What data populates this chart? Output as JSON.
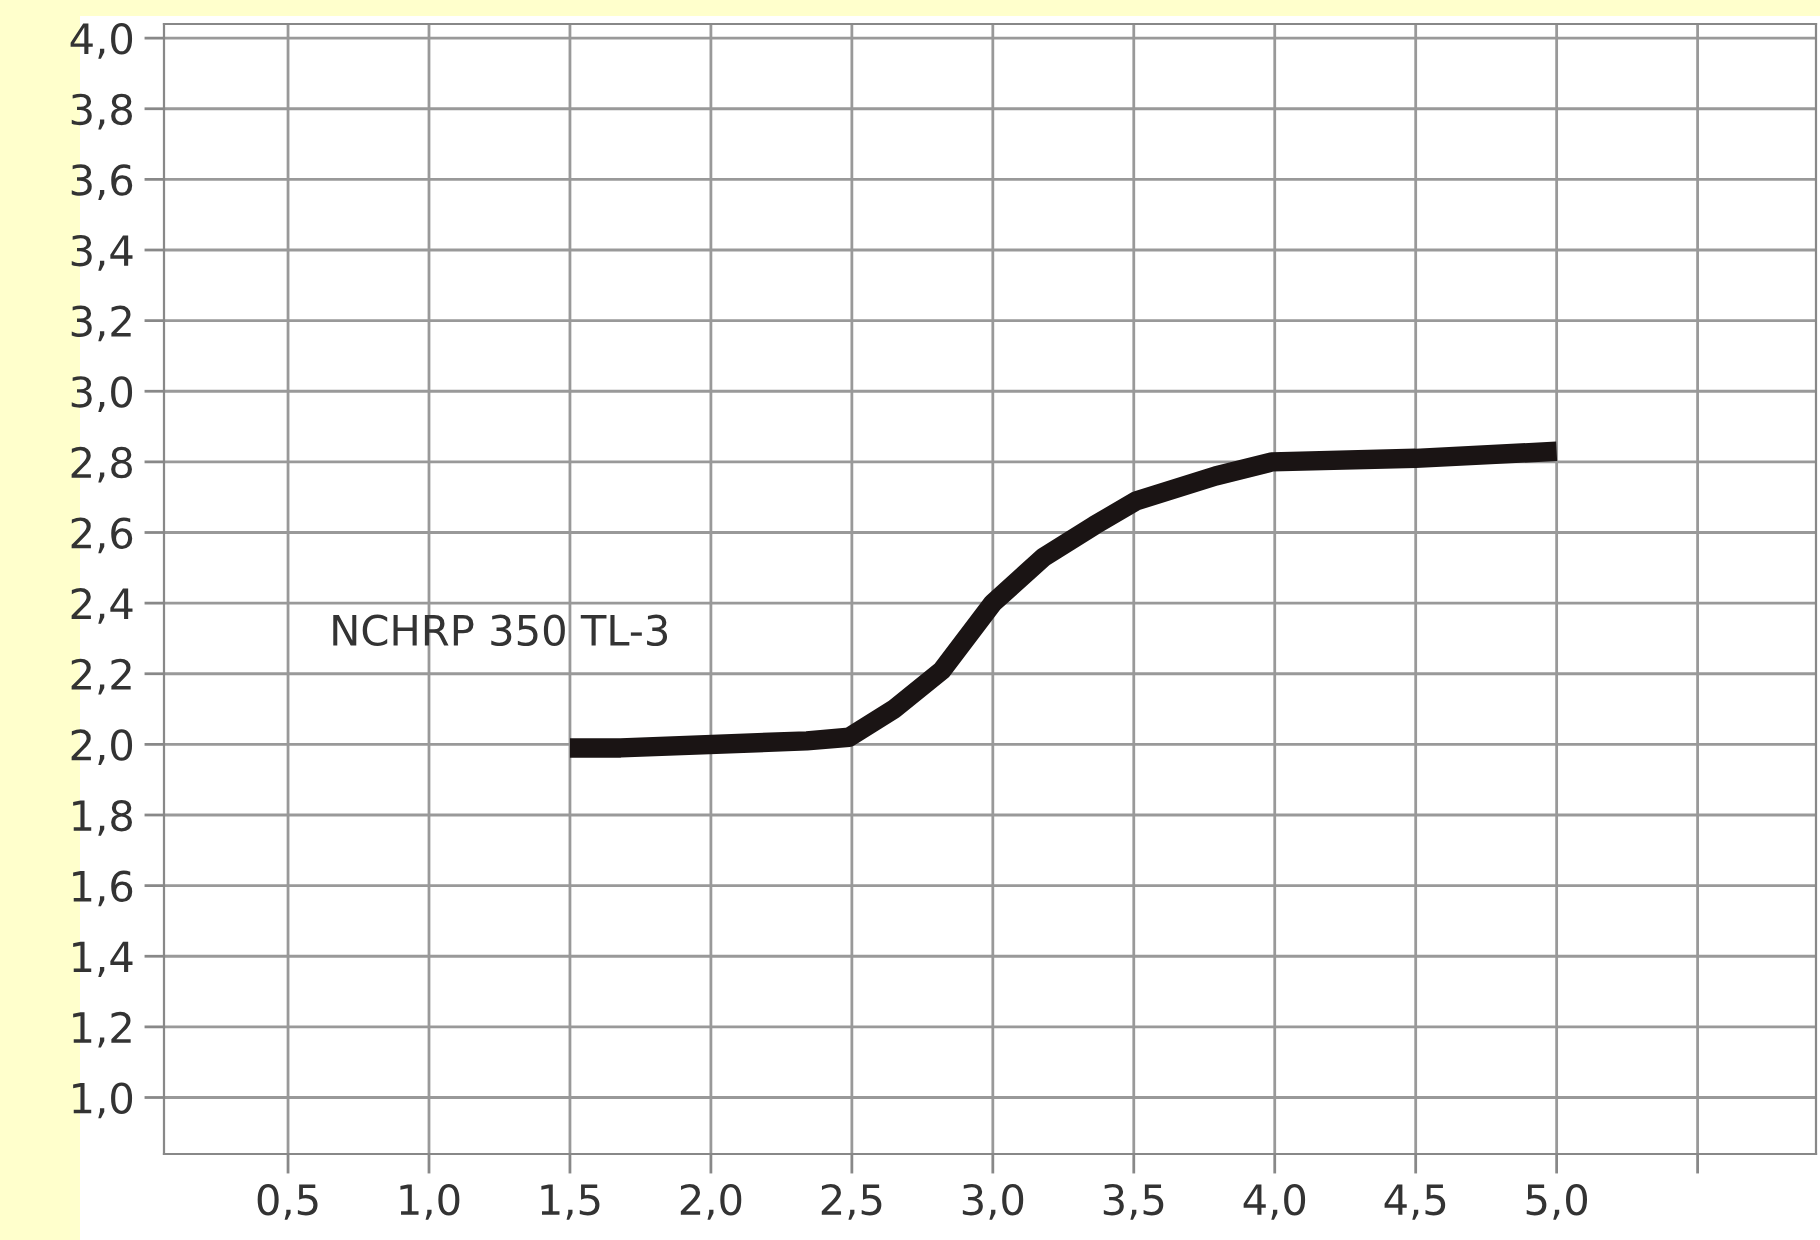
{
  "chart_data": {
    "type": "line",
    "x": [
      1.5,
      1.68,
      2.34,
      2.49,
      2.65,
      2.82,
      3.0,
      3.18,
      3.36,
      3.51,
      3.79,
      3.99,
      4.5,
      5.0
    ],
    "series": [
      {
        "name": "NCHRP 350 TL-3",
        "color": "#1a1414",
        "values": [
          1.99,
          1.99,
          2.01,
          2.02,
          2.1,
          2.21,
          2.4,
          2.53,
          2.62,
          2.69,
          2.76,
          2.8,
          2.81,
          2.83
        ]
      }
    ],
    "xlim": [
      0.06,
      5.92
    ],
    "xticks": [
      {
        "value": 0.5,
        "label": "0,5"
      },
      {
        "value": 1.0,
        "label": "1,0"
      },
      {
        "value": 1.5,
        "label": "1,5"
      },
      {
        "value": 2.0,
        "label": "2,0"
      },
      {
        "value": 2.5,
        "label": "2,5"
      },
      {
        "value": 3.0,
        "label": "3,0"
      },
      {
        "value": 3.5,
        "label": "3,5"
      },
      {
        "value": 4.0,
        "label": "4,0"
      },
      {
        "value": 4.5,
        "label": "4,5"
      },
      {
        "value": 5.0,
        "label": "5,0"
      },
      {
        "value": 5.5,
        "label": null
      }
    ],
    "ylim": [
      0.84,
      4.04
    ],
    "yticks": [
      {
        "value": 1.0,
        "label": "1,0"
      },
      {
        "value": 1.2,
        "label": "1,2"
      },
      {
        "value": 1.4,
        "label": "1,4"
      },
      {
        "value": 1.6,
        "label": "1,6"
      },
      {
        "value": 1.8,
        "label": "1,8"
      },
      {
        "value": 2.0,
        "label": "2,0"
      },
      {
        "value": 2.2,
        "label": "2,2"
      },
      {
        "value": 2.4,
        "label": "2,4"
      },
      {
        "value": 2.6,
        "label": "2,6"
      },
      {
        "value": 2.8,
        "label": "2,8"
      },
      {
        "value": 3.0,
        "label": "3,0"
      },
      {
        "value": 3.2,
        "label": "3,2"
      },
      {
        "value": 3.4,
        "label": "3,4"
      },
      {
        "value": 3.6,
        "label": "3,6"
      },
      {
        "value": 3.8,
        "label": "3,8"
      },
      {
        "value": 4.0,
        "label": "4,0"
      }
    ],
    "grid": true,
    "legend": false,
    "marker": "none",
    "line_style": "solid"
  }
}
